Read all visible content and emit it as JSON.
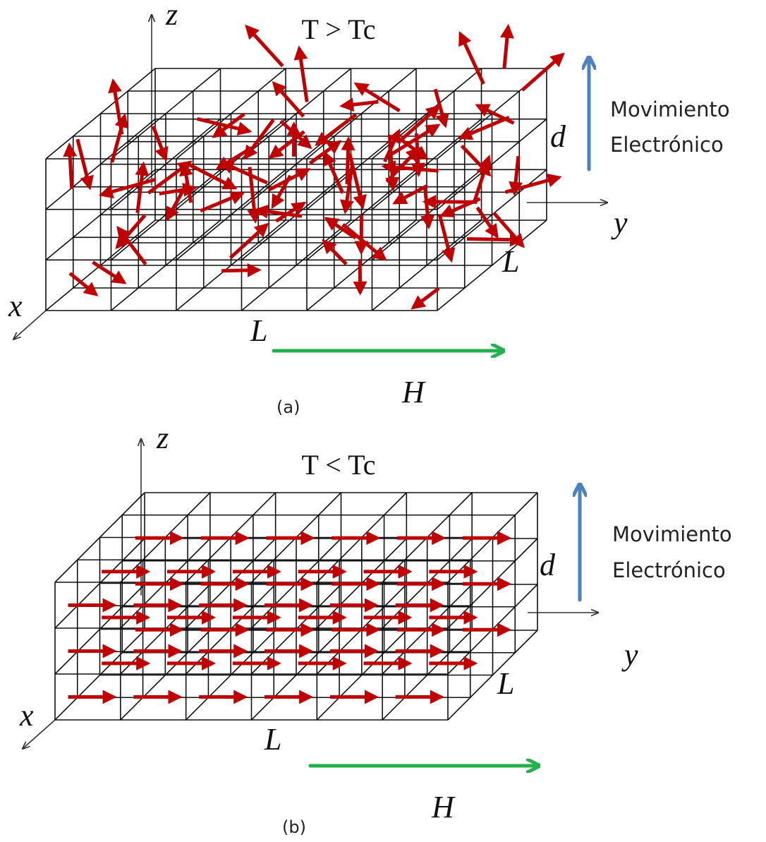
{
  "panels": [
    {
      "temperature": "T > Tc",
      "axes": {
        "x": "x",
        "y": "y",
        "z": "z"
      },
      "dimensions": {
        "width": "L",
        "depth": "L",
        "height": "d"
      },
      "field": "H",
      "motion": [
        "Movimiento",
        "Electrónico"
      ],
      "caption": "(a)"
    },
    {
      "temperature": "T < Tc",
      "axes": {
        "x": "x",
        "y": "y",
        "z": "z"
      },
      "dimensions": {
        "width": "L",
        "depth": "L",
        "height": "d"
      },
      "field": "H",
      "motion": [
        "Movimiento",
        "Electrónico"
      ],
      "caption": "(b)"
    }
  ]
}
